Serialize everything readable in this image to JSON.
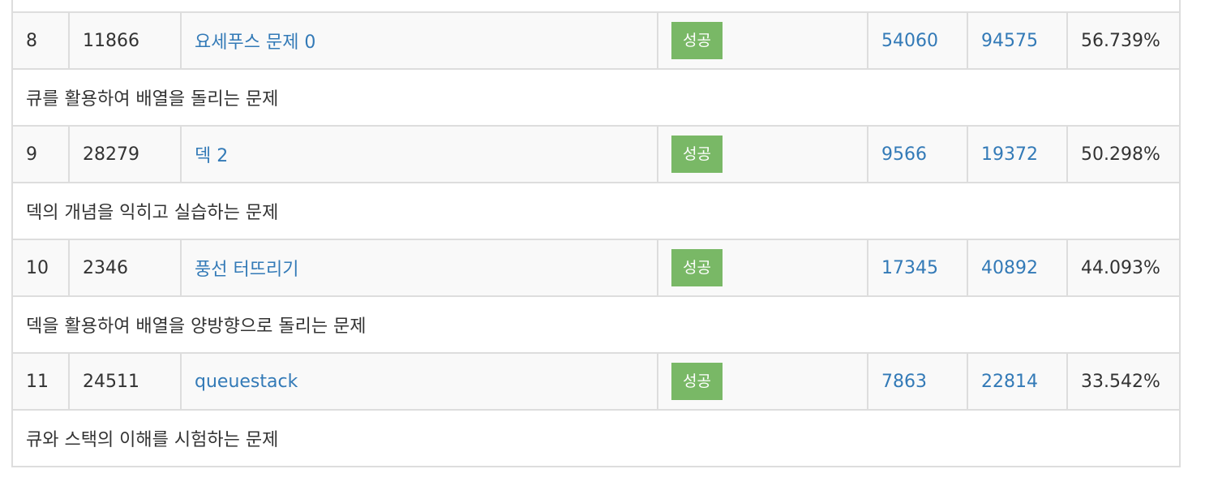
{
  "colors": {
    "link": "#337ab7",
    "success_badge": "#79b866",
    "border": "#dddddd",
    "row_bg": "#f9f9f9"
  },
  "rows": [
    {
      "index": "8",
      "problem_id": "11866",
      "title": "요세푸스 문제 0",
      "status": "성공",
      "solved": "54060",
      "submissions": "94575",
      "ratio": "56.739%",
      "description": "큐를 활용하여 배열을 돌리는 문제"
    },
    {
      "index": "9",
      "problem_id": "28279",
      "title": "덱 2",
      "status": "성공",
      "solved": "9566",
      "submissions": "19372",
      "ratio": "50.298%",
      "description": "덱의 개념을 익히고 실습하는 문제"
    },
    {
      "index": "10",
      "problem_id": "2346",
      "title": "풍선 터뜨리기",
      "status": "성공",
      "solved": "17345",
      "submissions": "40892",
      "ratio": "44.093%",
      "description": "덱을 활용하여 배열을 양방향으로 돌리는 문제"
    },
    {
      "index": "11",
      "problem_id": "24511",
      "title": "queuestack",
      "status": "성공",
      "solved": "7863",
      "submissions": "22814",
      "ratio": "33.542%",
      "description": "큐와 스택의 이해를 시험하는 문제"
    }
  ]
}
